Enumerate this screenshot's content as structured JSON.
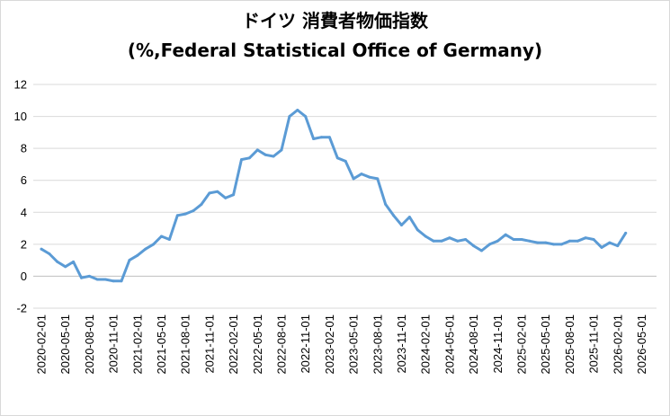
{
  "chart_data": {
    "type": "line",
    "title": "ドイツ 消費者物価指数",
    "subtitle": "(%,Federal Statistical Office of Germany)",
    "xlabel": "",
    "ylabel": "",
    "ylim": [
      -2,
      12
    ],
    "yticks": [
      "12",
      "10",
      "8",
      "6",
      "4",
      "2",
      "0",
      "-2"
    ],
    "xtick_labels": [
      "2020-02-01",
      "2020-05-01",
      "2020-08-01",
      "2020-11-01",
      "2021-02-01",
      "2021-05-01",
      "2021-08-01",
      "2021-11-01",
      "2022-02-01",
      "2022-05-01",
      "2022-08-01",
      "2022-11-01",
      "2023-02-01",
      "2023-05-01",
      "2023-08-01",
      "2023-11-01",
      "2024-02-01",
      "2024-05-01",
      "2024-08-01",
      "2024-11-01",
      "2025-02-01",
      "2025-05-01",
      "2025-08-01",
      "2025-11-01",
      "2026-02-01",
      "2026-05-01"
    ],
    "grid": "horizontal",
    "line_color": "#5b9bd5",
    "series": [
      {
        "x_start": "2020-02",
        "values": [
          1.7,
          1.4,
          0.9,
          0.6,
          0.9,
          -0.1,
          0.0,
          -0.2,
          -0.2,
          -0.3,
          -0.3,
          1.0,
          1.3,
          1.7,
          2.0,
          2.5,
          2.3,
          3.8,
          3.9,
          4.1,
          4.5,
          5.2,
          5.3,
          4.9,
          5.1,
          7.3,
          7.4,
          7.9,
          7.6,
          7.5,
          7.9,
          10.0,
          10.4,
          10.0,
          8.6,
          8.7,
          8.7,
          7.4,
          7.2,
          6.1,
          6.4,
          6.2,
          6.1,
          4.5,
          3.8,
          3.2,
          3.7,
          2.9,
          2.5,
          2.2,
          2.2,
          2.4,
          2.2,
          2.3,
          1.9,
          1.6,
          2.0,
          2.2,
          2.6,
          2.3,
          2.3,
          2.2,
          2.1,
          2.1,
          2.0,
          2.0,
          2.2,
          2.2,
          2.4,
          2.3,
          1.8,
          2.1,
          1.9,
          2.7
        ]
      }
    ]
  }
}
